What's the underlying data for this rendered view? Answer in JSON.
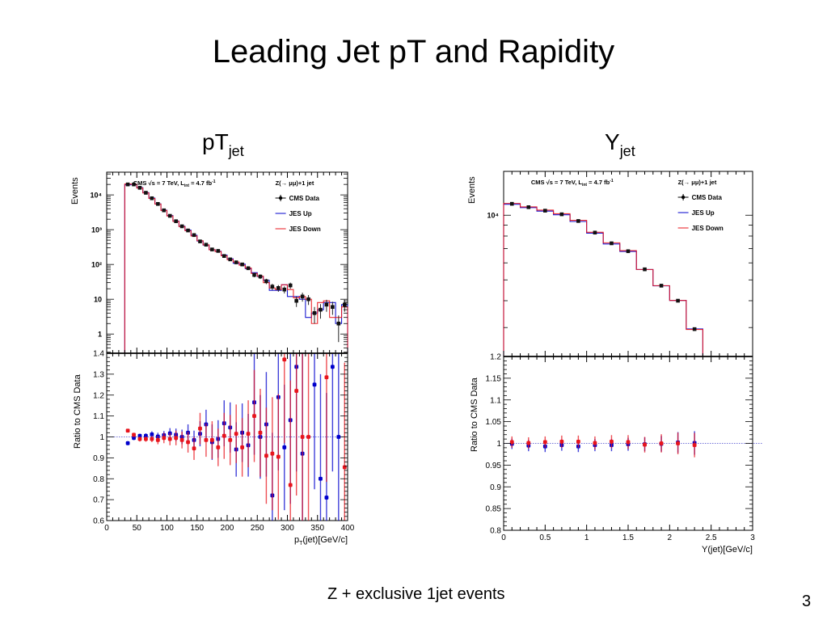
{
  "slide": {
    "title": "Leading Jet pT and Rapidity",
    "footer": "Z + exclusive 1jet events",
    "page_number": "3",
    "left_heading": {
      "main": "pT",
      "sub": "jet"
    },
    "right_heading": {
      "main": "Y",
      "sub": "jet"
    }
  },
  "colors": {
    "data": "#000000",
    "jes_up": "#0000cc",
    "jes_down": "#e8141c",
    "frame": "#000000"
  },
  "chart_data": [
    {
      "id": "pt-top",
      "type": "line",
      "subtype": "histogram-step-log",
      "title": "",
      "xlabel": "",
      "ylabel": "Events",
      "xlim": [
        0,
        400
      ],
      "ylim": [
        0.28,
        45000
      ],
      "yscale": "log",
      "ytick_labels": [
        {
          "v": 1,
          "t": "1"
        },
        {
          "v": 10,
          "t": "10"
        },
        {
          "v": 100,
          "t": "10²"
        },
        {
          "v": 1000,
          "t": "10³"
        },
        {
          "v": 10000,
          "t": "10⁴"
        }
      ],
      "annotation_left": "CMS  √s = 7 TeV, L_int = 4.7 fb⁻¹",
      "annotation_right": "Z(→ μμ)+1 jet",
      "legend": [
        "CMS Data",
        "JES Up",
        "JES Down"
      ],
      "legend_position": "top-right",
      "bin_edges": [
        30,
        40,
        50,
        60,
        70,
        80,
        90,
        100,
        110,
        120,
        130,
        140,
        150,
        160,
        170,
        180,
        190,
        200,
        210,
        220,
        230,
        240,
        250,
        260,
        270,
        280,
        290,
        300,
        310,
        320,
        330,
        340,
        350,
        360,
        370,
        380,
        390,
        400
      ],
      "series": [
        {
          "name": "CMS Data",
          "values": [
            20000,
            20000,
            16000,
            11500,
            8000,
            5500,
            3600,
            2500,
            1750,
            1250,
            950,
            700,
            460,
            370,
            270,
            245,
            175,
            140,
            115,
            100,
            78,
            50,
            45,
            33,
            23,
            21,
            19,
            25,
            9,
            12,
            10,
            4,
            5,
            7,
            6,
            2,
            7
          ]
        },
        {
          "name": "JES Up",
          "values": [
            19400,
            20000,
            16100,
            11600,
            8100,
            5500,
            3620,
            2550,
            1770,
            1250,
            970,
            690,
            470,
            360,
            265,
            240,
            185,
            145,
            108,
            102,
            76,
            58,
            45,
            35,
            18,
            18,
            26,
            12,
            12,
            10,
            3,
            4,
            5,
            8,
            8,
            2,
            7
          ]
        },
        {
          "name": "JES Down",
          "values": [
            20700,
            20200,
            15800,
            11400,
            7900,
            5440,
            3580,
            2480,
            1740,
            1230,
            930,
            660,
            480,
            365,
            265,
            235,
            177,
            138,
            117,
            95,
            79,
            55,
            46,
            30,
            21,
            19,
            26,
            19,
            11,
            12,
            10,
            2,
            8,
            9,
            3,
            3,
            6
          ]
        }
      ]
    },
    {
      "id": "pt-ratio",
      "type": "scatter",
      "xlabel": "p_T(jet)[GeV/c]",
      "ylabel": "Ratio to CMS Data",
      "xlim": [
        0,
        400
      ],
      "ylim": [
        0.6,
        1.4
      ],
      "xticks": [
        0,
        50,
        100,
        150,
        200,
        250,
        300,
        350,
        400
      ],
      "yticks": [
        0.6,
        0.7,
        0.8,
        0.9,
        1,
        1.1,
        1.2,
        1.3,
        1.4
      ],
      "ytick_labels": [
        "0.6",
        "0.7",
        "0.8",
        "0.9",
        "1",
        "1.1",
        "1.2",
        "1.3",
        "1.4"
      ],
      "reference_line": 1.0,
      "x": [
        35,
        45,
        55,
        65,
        75,
        85,
        95,
        105,
        115,
        125,
        135,
        145,
        155,
        165,
        175,
        185,
        195,
        205,
        215,
        225,
        235,
        245,
        255,
        265,
        275,
        285,
        295,
        305,
        315,
        325,
        335,
        345,
        355,
        365,
        375,
        385,
        395
      ],
      "series": [
        {
          "name": "JES Up",
          "values": [
            0.97,
            0.995,
            1.005,
            1.005,
            1.012,
            1.002,
            1.008,
            1.017,
            1.01,
            1.0,
            1.02,
            0.985,
            1.015,
            1.06,
            0.975,
            0.99,
            1.065,
            1.045,
            0.94,
            1.02,
            0.96,
            1.165,
            1.0,
            1.06,
            0.72,
            1.19,
            0.95,
            1.08,
            1.335,
            0.92,
            null,
            1.25,
            0.8,
            0.71,
            1.335,
            1.0,
            null
          ],
          "errors": [
            0.01,
            0.01,
            0.01,
            0.012,
            0.015,
            0.018,
            0.02,
            0.025,
            0.03,
            0.035,
            0.04,
            0.045,
            0.06,
            0.07,
            0.085,
            0.09,
            0.11,
            0.12,
            0.13,
            0.14,
            0.15,
            0.25,
            0.2,
            0.25,
            0.3,
            0.35,
            0.3,
            0.4,
            0.5,
            0.5,
            null,
            0.5,
            0.5,
            0.5,
            0.5,
            0.5,
            null
          ]
        },
        {
          "name": "JES Down",
          "values": [
            1.03,
            1.01,
            0.99,
            0.99,
            0.99,
            0.985,
            0.995,
            0.99,
            0.995,
            0.985,
            0.975,
            0.945,
            1.04,
            0.985,
            0.985,
            0.95,
            1.005,
            0.985,
            1.015,
            0.95,
            1.015,
            1.1,
            1.02,
            0.91,
            0.92,
            0.905,
            1.37,
            0.77,
            1.22,
            1.0,
            1.0,
            null,
            null,
            1.285,
            null,
            null,
            0.855
          ],
          "errors": [
            0.008,
            0.01,
            0.012,
            0.013,
            0.015,
            0.02,
            0.025,
            0.03,
            0.035,
            0.04,
            0.05,
            0.055,
            0.075,
            0.08,
            0.09,
            0.09,
            0.11,
            0.12,
            0.14,
            0.14,
            0.16,
            0.22,
            0.21,
            0.23,
            0.27,
            0.3,
            0.4,
            0.5,
            0.5,
            0.5,
            0.5,
            null,
            null,
            0.5,
            null,
            null,
            0.5
          ]
        }
      ]
    },
    {
      "id": "y-top",
      "type": "line",
      "subtype": "histogram-step-log",
      "xlabel": "",
      "ylabel": "Events",
      "xlim": [
        0,
        3
      ],
      "ylim": [
        2200,
        16000
      ],
      "yscale": "log",
      "ytick_labels": [
        {
          "v": 10000,
          "t": "10⁴"
        }
      ],
      "annotation_left": "CMS  √s = 7 TeV, L_int = 4.7 fb⁻¹",
      "annotation_right": "Z(→ μμ)+1 jet",
      "legend": [
        "CMS Data",
        "JES Up",
        "JES Down"
      ],
      "legend_position": "top-right",
      "bin_edges": [
        0,
        0.2,
        0.4,
        0.6,
        0.8,
        1.0,
        1.2,
        1.4,
        1.6,
        1.8,
        2.0,
        2.2,
        2.4
      ],
      "series": [
        {
          "name": "CMS Data",
          "values": [
            11300,
            10900,
            10500,
            10100,
            9400,
            8300,
            7400,
            6800,
            5600,
            4700,
            4000,
            2950
          ]
        },
        {
          "name": "JES Up",
          "values": [
            11250,
            10850,
            10450,
            10050,
            9350,
            8250,
            7350,
            6780,
            5590,
            4690,
            4010,
            2955
          ]
        },
        {
          "name": "JES Down",
          "values": [
            11350,
            10930,
            10560,
            10160,
            9470,
            8330,
            7440,
            6840,
            5590,
            4700,
            4010,
            2940
          ]
        }
      ]
    },
    {
      "id": "y-ratio",
      "type": "scatter",
      "xlabel": "Y(jet)[GeV/c]",
      "ylabel": "Ratio to CMS Data",
      "xlim": [
        0,
        3
      ],
      "ylim": [
        0.8,
        1.2
      ],
      "xticks": [
        0,
        0.5,
        1,
        1.5,
        2,
        2.5,
        3
      ],
      "xtick_labels": [
        "0",
        "0.5",
        "1",
        "1.5",
        "2",
        "2.5",
        "3"
      ],
      "yticks": [
        0.8,
        0.85,
        0.9,
        0.95,
        1,
        1.05,
        1.1,
        1.15,
        1.2
      ],
      "ytick_labels": [
        "0.8",
        "0.85",
        "0.9",
        "0.95",
        "1",
        "1.05",
        "1.1",
        "1.15",
        "1.2"
      ],
      "reference_line": 1.0,
      "x": [
        0.1,
        0.3,
        0.5,
        0.7,
        0.9,
        1.1,
        1.3,
        1.5,
        1.7,
        1.9,
        2.1,
        2.3
      ],
      "series": [
        {
          "name": "JES Up",
          "values": [
            0.999,
            0.995,
            0.993,
            0.996,
            0.993,
            0.996,
            0.996,
            0.998,
            0.998,
            0.999,
            1.002,
            1.001
          ],
          "errors": [
            0.012,
            0.013,
            0.013,
            0.013,
            0.013,
            0.014,
            0.014,
            0.015,
            0.016,
            0.018,
            0.024,
            0.027
          ]
        },
        {
          "name": "JES Down",
          "values": [
            1.003,
            1.001,
            1.003,
            1.004,
            1.004,
            1.001,
            1.004,
            1.003,
            0.997,
            1.0,
            1.0,
            0.996
          ],
          "errors": [
            0.013,
            0.013,
            0.013,
            0.014,
            0.014,
            0.015,
            0.015,
            0.016,
            0.018,
            0.021,
            0.025,
            0.028
          ]
        }
      ]
    }
  ]
}
